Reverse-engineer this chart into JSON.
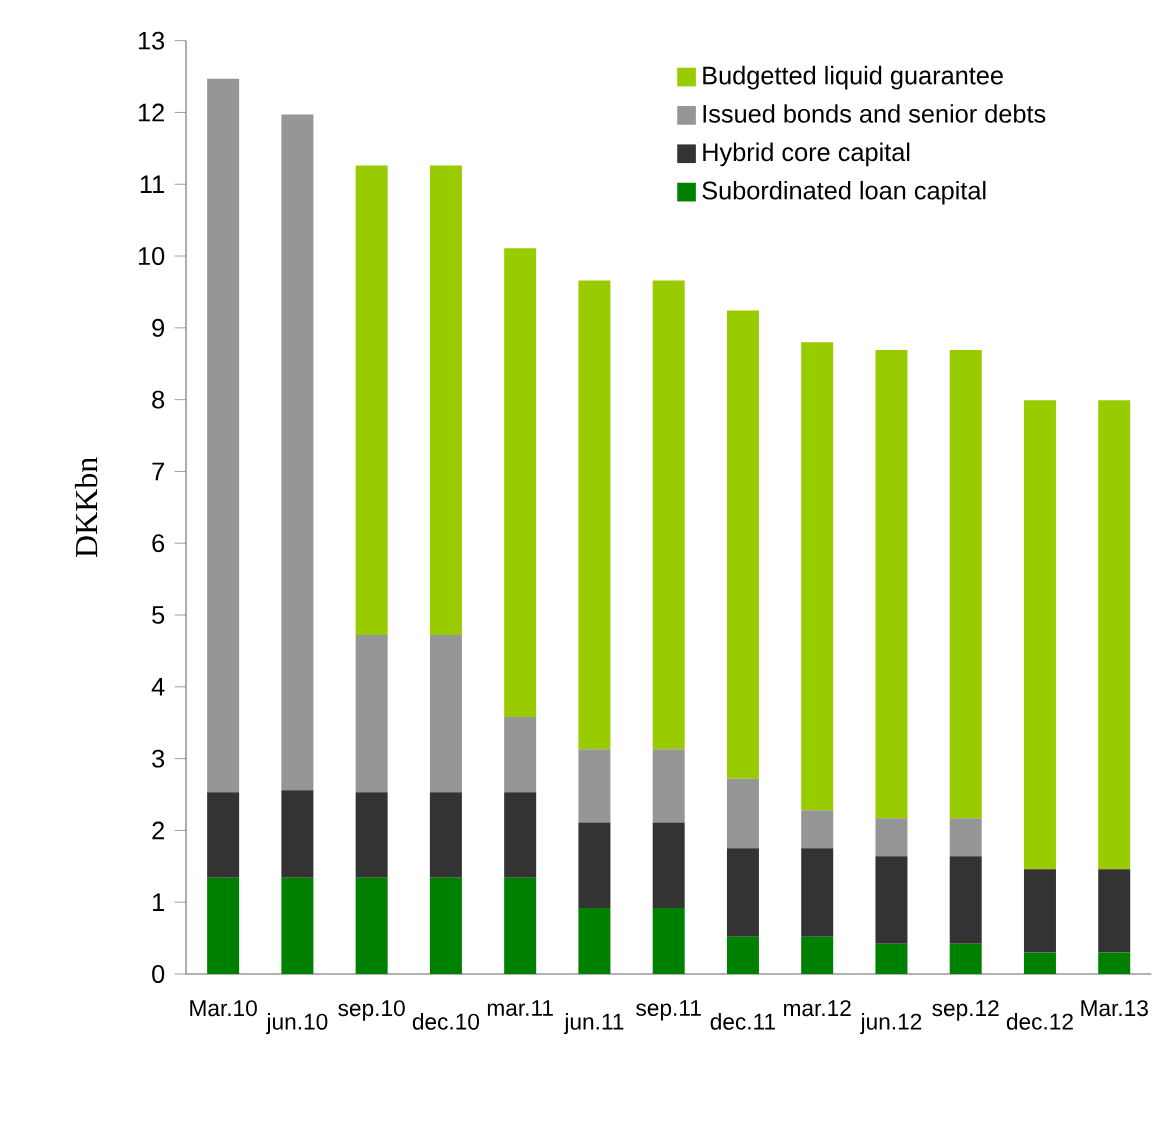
{
  "chart_data": {
    "type": "bar",
    "stacked": true,
    "ylabel": "DKKbn",
    "categories": [
      "Mar.10",
      "jun.10",
      "sep.10",
      "dec.10",
      "mar.11",
      "jun.11",
      "sep.11",
      "dec.11",
      "mar.12",
      "jun.12",
      "sep.12",
      "dec.12",
      "Mar.13"
    ],
    "series": [
      {
        "name": "Subordinated loan capital",
        "color": "#008000",
        "values": [
          1.34,
          1.34,
          1.34,
          1.34,
          1.34,
          0.92,
          0.92,
          0.52,
          0.52,
          0.42,
          0.42,
          0.3,
          0.3
        ]
      },
      {
        "name": "Hybrid core capital",
        "color": "#333333",
        "values": [
          1.19,
          1.22,
          1.19,
          1.19,
          1.19,
          1.19,
          1.19,
          1.23,
          1.23,
          1.22,
          1.22,
          1.16,
          1.16
        ]
      },
      {
        "name": "Issued bonds and senior debts",
        "color": "#969696",
        "values": [
          9.94,
          9.41,
          2.19,
          2.19,
          1.05,
          1.02,
          1.02,
          0.97,
          0.53,
          0.53,
          0.53,
          0,
          0
        ]
      },
      {
        "name": "Budgetted liquid guarantee",
        "color": "#99cc00",
        "values": [
          0,
          0,
          6.54,
          6.54,
          6.53,
          6.53,
          6.53,
          6.52,
          6.52,
          6.52,
          6.52,
          6.53,
          6.53
        ]
      }
    ],
    "ylim": [
      0,
      13
    ],
    "yticks": [
      0,
      1,
      2,
      3,
      4,
      5,
      6,
      7,
      8,
      9,
      10,
      11,
      12,
      13
    ],
    "grid": false,
    "legend": "top right"
  }
}
